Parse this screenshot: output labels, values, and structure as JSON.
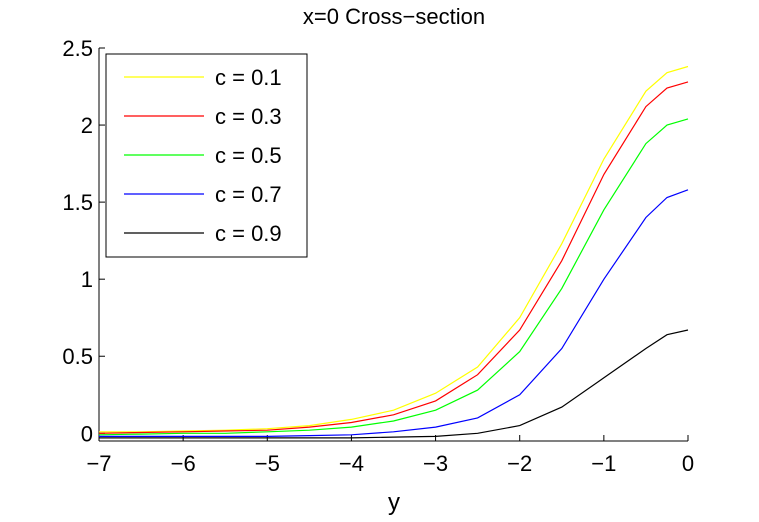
{
  "chart_data": {
    "type": "line",
    "title": "x=0 Cross−section",
    "xlabel": "y",
    "ylabel": "",
    "xlim": [
      -7,
      0
    ],
    "ylim": [
      -0.05,
      2.5
    ],
    "xticks": [
      "−7",
      "−6",
      "−5",
      "−4",
      "−3",
      "−2",
      "−1",
      "0"
    ],
    "xtick_values": [
      -7,
      -6,
      -5,
      -4,
      -3,
      -2,
      -1,
      0
    ],
    "yticks": [
      "0",
      "0.5",
      "1",
      "1.5",
      "2",
      "2.5"
    ],
    "ytick_values": [
      0,
      0.5,
      1,
      1.5,
      2,
      2.5
    ],
    "grid": false,
    "legend_position": "top-left",
    "x": [
      -7,
      -6.5,
      -6,
      -5.5,
      -5,
      -4.5,
      -4,
      -3.5,
      -3,
      -2.5,
      -2,
      -1.5,
      -1,
      -0.5,
      -0.25,
      0
    ],
    "series": [
      {
        "name": "c = 0.1",
        "color": "#ffff00",
        "values": [
          0.01,
          0.01,
          0.015,
          0.02,
          0.03,
          0.05,
          0.09,
          0.15,
          0.26,
          0.43,
          0.75,
          1.23,
          1.78,
          2.22,
          2.34,
          2.38
        ]
      },
      {
        "name": "c = 0.3",
        "color": "#ff0000",
        "values": [
          0.0,
          0.005,
          0.01,
          0.015,
          0.02,
          0.04,
          0.07,
          0.12,
          0.21,
          0.38,
          0.67,
          1.12,
          1.68,
          2.12,
          2.24,
          2.28
        ]
      },
      {
        "name": "c = 0.5",
        "color": "#00ff00",
        "values": [
          -0.01,
          -0.005,
          0.0,
          0.0,
          0.01,
          0.02,
          0.04,
          0.08,
          0.15,
          0.28,
          0.53,
          0.94,
          1.45,
          1.88,
          2.0,
          2.04
        ]
      },
      {
        "name": "c = 0.7",
        "color": "#0000ff",
        "values": [
          -0.02,
          -0.02,
          -0.02,
          -0.02,
          -0.02,
          -0.015,
          -0.01,
          0.01,
          0.04,
          0.1,
          0.25,
          0.55,
          1.0,
          1.4,
          1.53,
          1.58
        ]
      },
      {
        "name": "c = 0.9",
        "color": "#000000",
        "values": [
          -0.03,
          -0.03,
          -0.03,
          -0.03,
          -0.03,
          -0.03,
          -0.03,
          -0.025,
          -0.02,
          0.0,
          0.05,
          0.17,
          0.36,
          0.55,
          0.64,
          0.67
        ]
      }
    ]
  }
}
